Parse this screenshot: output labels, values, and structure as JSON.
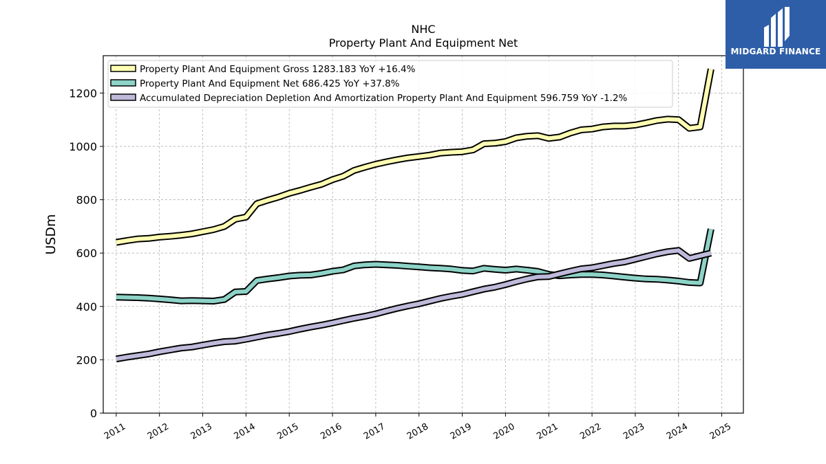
{
  "chart_data": {
    "type": "line",
    "title": "NHC",
    "subtitle": "Property Plant And Equipment Net",
    "ylabel": "USDm",
    "xlabel": "",
    "ylim": [
      0,
      1340
    ],
    "xlim": [
      2010.7,
      2025.5
    ],
    "yticks": [
      0,
      200,
      400,
      600,
      800,
      1000,
      1200
    ],
    "xticks": [
      "2011",
      "2012",
      "2013",
      "2014",
      "2015",
      "2016",
      "2017",
      "2018",
      "2019",
      "2020",
      "2021",
      "2022",
      "2023",
      "2024",
      "2025"
    ],
    "grid": true,
    "legend_position": "top-left",
    "series": [
      {
        "name": "Property Plant And Equipment Gross",
        "legend_label": "Property Plant And Equipment Gross  1283.183 YoY +16.4%",
        "color": "#ffffb3",
        "x": [
          2011.0,
          2011.25,
          2011.5,
          2011.75,
          2012.0,
          2012.25,
          2012.5,
          2012.75,
          2013.0,
          2013.25,
          2013.5,
          2013.75,
          2014.0,
          2014.25,
          2014.5,
          2014.75,
          2015.0,
          2015.25,
          2015.5,
          2015.75,
          2016.0,
          2016.25,
          2016.5,
          2016.75,
          2017.0,
          2017.25,
          2017.5,
          2017.75,
          2018.0,
          2018.25,
          2018.5,
          2018.75,
          2019.0,
          2019.25,
          2019.5,
          2019.75,
          2020.0,
          2020.25,
          2020.5,
          2020.75,
          2021.0,
          2021.25,
          2021.5,
          2021.75,
          2022.0,
          2022.25,
          2022.5,
          2022.75,
          2023.0,
          2023.25,
          2023.5,
          2023.75,
          2024.0,
          2024.25,
          2024.5,
          2024.75
        ],
        "values": [
          640,
          647,
          653,
          655,
          660,
          663,
          667,
          672,
          680,
          688,
          700,
          727,
          735,
          785,
          798,
          810,
          824,
          835,
          847,
          858,
          875,
          888,
          910,
          922,
          933,
          942,
          950,
          957,
          962,
          967,
          975,
          978,
          980,
          987,
          1010,
          1012,
          1018,
          1032,
          1038,
          1040,
          1030,
          1035,
          1050,
          1062,
          1065,
          1073,
          1076,
          1076,
          1080,
          1088,
          1097,
          1102,
          1100,
          1068,
          1073,
          1290
        ]
      },
      {
        "name": "Property Plant And Equipment Net",
        "legend_label": "Property Plant And Equipment Net  686.425 YoY +37.8%",
        "color": "#8dd3c7",
        "x": [
          2011.0,
          2011.25,
          2011.5,
          2011.75,
          2012.0,
          2012.25,
          2012.5,
          2012.75,
          2013.0,
          2013.25,
          2013.5,
          2013.75,
          2014.0,
          2014.25,
          2014.5,
          2014.75,
          2015.0,
          2015.25,
          2015.5,
          2015.75,
          2016.0,
          2016.25,
          2016.5,
          2016.75,
          2017.0,
          2017.25,
          2017.5,
          2017.75,
          2018.0,
          2018.25,
          2018.5,
          2018.75,
          2019.0,
          2019.25,
          2019.5,
          2019.75,
          2020.0,
          2020.25,
          2020.5,
          2020.75,
          2021.0,
          2021.25,
          2021.5,
          2021.75,
          2022.0,
          2022.25,
          2022.5,
          2022.75,
          2023.0,
          2023.25,
          2023.5,
          2023.75,
          2024.0,
          2024.25,
          2024.5,
          2024.75
        ],
        "values": [
          435,
          434,
          433,
          431,
          428,
          425,
          421,
          422,
          421,
          420,
          426,
          454,
          456,
          497,
          503,
          508,
          514,
          517,
          518,
          524,
          532,
          537,
          552,
          556,
          558,
          556,
          554,
          551,
          548,
          545,
          543,
          540,
          535,
          533,
          543,
          539,
          536,
          540,
          536,
          531,
          520,
          515,
          518,
          520,
          520,
          518,
          514,
          510,
          506,
          503,
          502,
          499,
          495,
          490,
          488,
          690
        ]
      },
      {
        "name": "Accumulated Depreciation Depletion And Amortization Property Plant And Equipment",
        "legend_label": "Accumulated Depreciation Depletion And Amortization Property Plant And Equipment  596.759 YoY -1.2%",
        "color": "#bebada",
        "x": [
          2011.0,
          2011.25,
          2011.5,
          2011.75,
          2012.0,
          2012.25,
          2012.5,
          2012.75,
          2013.0,
          2013.25,
          2013.5,
          2013.75,
          2014.0,
          2014.25,
          2014.5,
          2014.75,
          2015.0,
          2015.25,
          2015.5,
          2015.75,
          2016.0,
          2016.25,
          2016.5,
          2016.75,
          2017.0,
          2017.25,
          2017.5,
          2017.75,
          2018.0,
          2018.25,
          2018.5,
          2018.75,
          2019.0,
          2019.25,
          2019.5,
          2019.75,
          2020.0,
          2020.25,
          2020.5,
          2020.75,
          2021.0,
          2021.25,
          2021.5,
          2021.75,
          2022.0,
          2022.25,
          2022.5,
          2022.75,
          2023.0,
          2023.25,
          2023.5,
          2023.75,
          2024.0,
          2024.25,
          2024.5,
          2024.75
        ],
        "values": [
          203,
          210,
          216,
          222,
          230,
          237,
          244,
          248,
          255,
          262,
          268,
          270,
          277,
          285,
          293,
          299,
          306,
          315,
          323,
          330,
          338,
          347,
          356,
          363,
          372,
          383,
          393,
          402,
          410,
          420,
          430,
          438,
          445,
          455,
          465,
          472,
          482,
          493,
          503,
          511,
          512,
          522,
          532,
          541,
          545,
          553,
          561,
          567,
          577,
          587,
          597,
          605,
          610,
          580,
          590,
          600
        ]
      }
    ]
  },
  "logo": {
    "text": "MIDGARD FINANCE",
    "background": "#2e5ea8"
  }
}
